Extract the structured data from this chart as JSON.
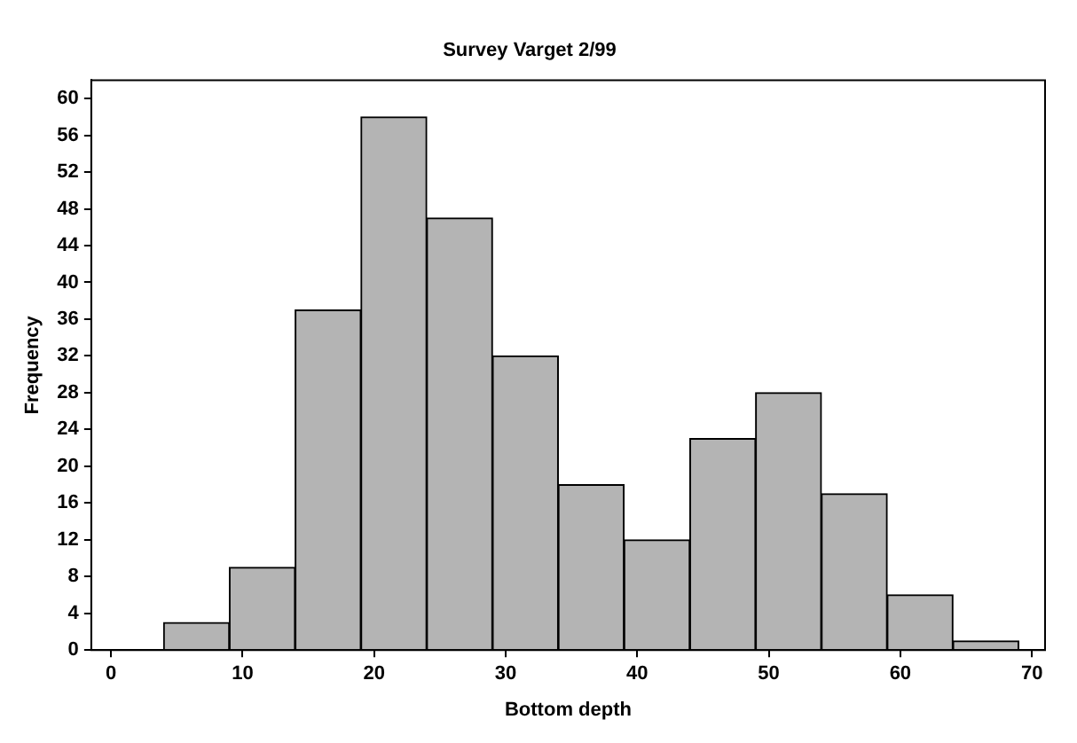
{
  "chart_data": {
    "type": "histogram",
    "title": "Survey Varget 2/99",
    "xlabel": "Bottom depth",
    "ylabel": "Frequency",
    "bins": [
      4,
      9,
      14,
      19,
      24,
      29,
      34,
      39,
      44,
      49,
      54,
      59,
      64,
      69
    ],
    "values": [
      3,
      9,
      37,
      58,
      47,
      32,
      18,
      12,
      23,
      28,
      17,
      6,
      1
    ],
    "color": "#b4b4b4",
    "xlim": [
      -1.5,
      71
    ],
    "xticks": [
      0,
      10,
      20,
      30,
      40,
      50,
      60,
      70
    ],
    "ylim": [
      0,
      62
    ],
    "yticks": [
      0,
      4,
      8,
      12,
      16,
      20,
      24,
      28,
      32,
      36,
      40,
      44,
      48,
      52,
      56,
      60
    ],
    "grid": false,
    "legend": false
  }
}
